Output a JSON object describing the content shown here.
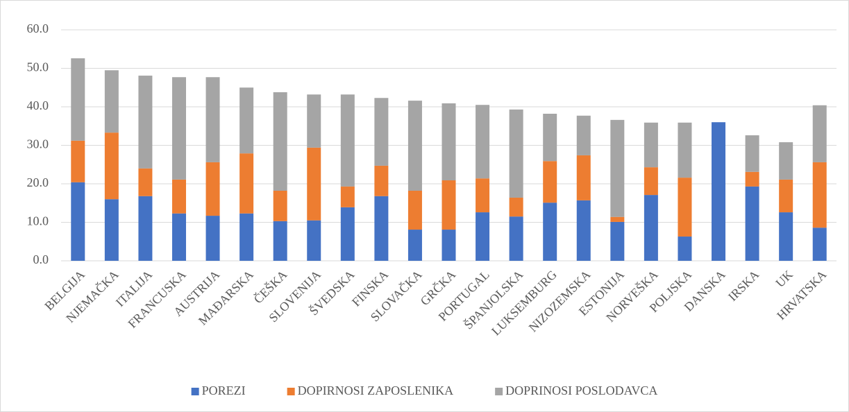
{
  "chart_data": {
    "type": "stacked_bar",
    "categories": [
      "BELGIJA",
      "NJEMAČKA",
      "ITALIJA",
      "FRANCUSKA",
      "AUSTRIJA",
      "MAĐARSKA",
      "ČEŠKA",
      "SLOVENIJA",
      "ŠVEDSKA",
      "FINSKA",
      "SLOVAČKA",
      "GRČKA",
      "PORTUGAL",
      "ŠPANJOLSKA",
      "LUKSEMBURG",
      "NIZOZEMSKA",
      "ESTONIJA",
      "NORVEŠKA",
      "POLJSKA",
      "DANSKA",
      "IRSKA",
      "UK",
      "HRVATSKA"
    ],
    "series": [
      {
        "name": "POREZI",
        "color": "#4472c4",
        "values": [
          20.4,
          16.0,
          16.8,
          12.3,
          11.7,
          12.3,
          10.3,
          10.5,
          13.9,
          16.8,
          8.1,
          8.1,
          12.6,
          11.5,
          15.1,
          15.7,
          10.1,
          17.1,
          6.3,
          36.0,
          19.3,
          12.6,
          8.6
        ]
      },
      {
        "name": "DOPIRNOSI ZAPOSLENIKA",
        "color": "#ed7d31",
        "values": [
          10.8,
          17.3,
          7.2,
          8.8,
          13.9,
          15.6,
          7.9,
          18.9,
          5.4,
          7.9,
          10.1,
          12.8,
          8.8,
          4.9,
          10.8,
          11.7,
          1.3,
          7.2,
          15.3,
          0,
          3.8,
          8.5,
          17.0
        ]
      },
      {
        "name": "DOPRINOSI POSLODAVCA",
        "color": "#a5a5a5",
        "values": [
          21.4,
          16.2,
          24.1,
          26.6,
          22.1,
          17.1,
          25.6,
          13.8,
          23.9,
          17.6,
          23.4,
          20.0,
          19.1,
          22.9,
          12.3,
          10.3,
          25.2,
          11.6,
          14.3,
          0,
          9.5,
          9.7,
          14.8
        ]
      }
    ],
    "ylim": [
      0,
      60
    ],
    "yticks": [
      {
        "value": 0,
        "label": "0.0"
      },
      {
        "value": 10,
        "label": "10.0"
      },
      {
        "value": 20,
        "label": "20.0"
      },
      {
        "value": 30,
        "label": "30.0"
      },
      {
        "value": 40,
        "label": "40.0"
      },
      {
        "value": 50,
        "label": "50.0"
      },
      {
        "value": 60,
        "label": "60.0"
      }
    ],
    "grid": true,
    "legend": "bottom"
  }
}
